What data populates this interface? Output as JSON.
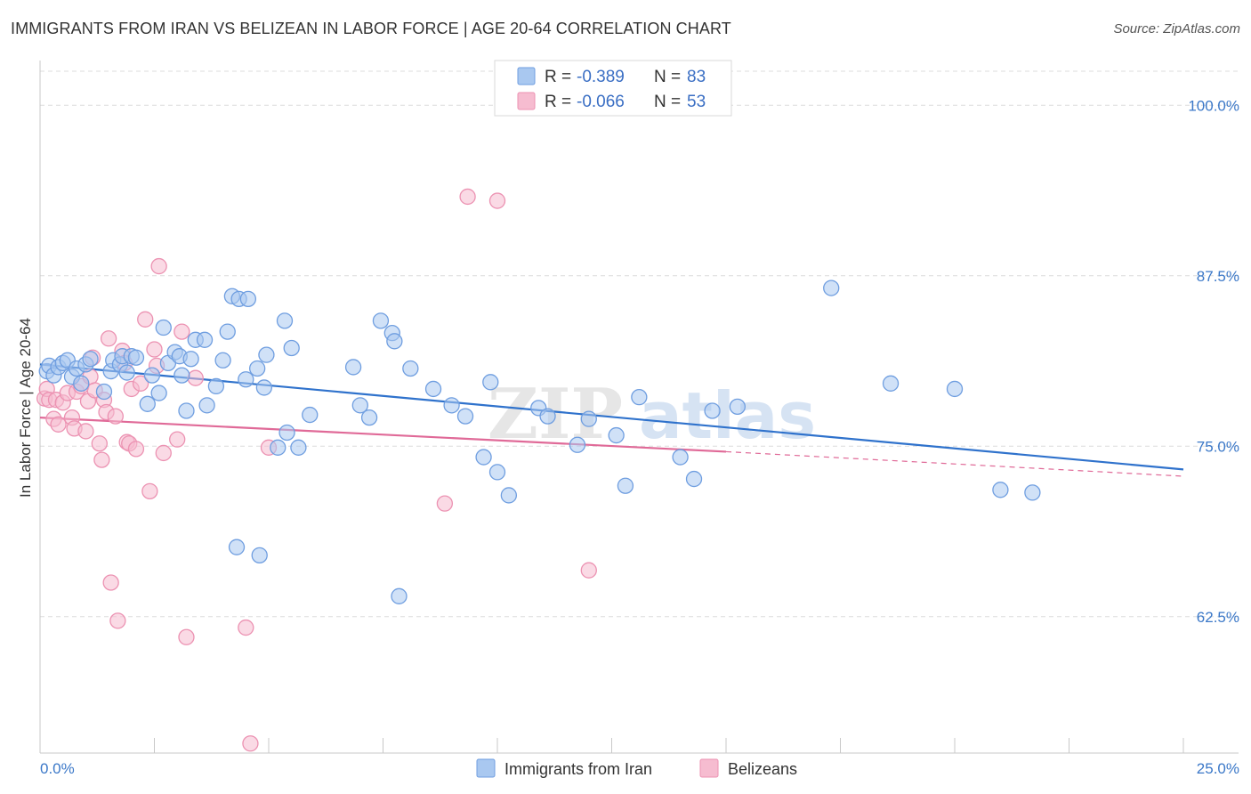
{
  "header": {
    "title": "IMMIGRANTS FROM IRAN VS BELIZEAN IN LABOR FORCE | AGE 20-64 CORRELATION CHART",
    "source": "Source: ZipAtlas.com"
  },
  "watermark": {
    "zip": "ZIP",
    "atlas": "atlas"
  },
  "colors": {
    "blue_fill": "#a9c8f0",
    "blue_stroke": "#6f9ee0",
    "blue_line": "#2f72cc",
    "pink_fill": "#f6bcd0",
    "pink_stroke": "#ec92b2",
    "pink_line": "#e06a98",
    "grid": "#dcdcdc",
    "tick_text": "#3b78c8"
  },
  "legend": {
    "series": [
      {
        "r_label": "R = ",
        "r_value": "-0.389",
        "n_label": "N = ",
        "n_value": "83"
      },
      {
        "r_label": "R = ",
        "r_value": "-0.066",
        "n_label": "N = ",
        "n_value": "53"
      }
    ]
  },
  "chart_data": {
    "type": "scatter",
    "title": "IMMIGRANTS FROM IRAN VS BELIZEAN IN LABOR FORCE | AGE 20-64 CORRELATION CHART",
    "xlabel": "",
    "ylabel": "In Labor Force | Age 20-64",
    "xlim": [
      0,
      25
    ],
    "ylim": [
      52.5,
      102.5
    ],
    "x_tick_labels": [
      "0.0%",
      "25.0%"
    ],
    "y_ticks": [
      62.5,
      75.0,
      87.5,
      100.0
    ],
    "y_tick_labels": [
      "62.5%",
      "75.0%",
      "87.5%",
      "100.0%"
    ],
    "grid": "horizontal dashed",
    "legend_position": "top-center",
    "series": [
      {
        "name": "Immigrants from Iran",
        "color": "#a9c8f0",
        "trend": {
          "x": [
            0,
            25
          ],
          "y": [
            81.0,
            73.3
          ]
        },
        "points": [
          [
            0.15,
            80.5
          ],
          [
            0.2,
            80.9
          ],
          [
            0.3,
            80.2
          ],
          [
            0.4,
            80.8
          ],
          [
            0.5,
            81.1
          ],
          [
            0.6,
            81.3
          ],
          [
            0.7,
            80.1
          ],
          [
            0.8,
            80.7
          ],
          [
            0.9,
            79.6
          ],
          [
            1.0,
            81.0
          ],
          [
            1.1,
            81.4
          ],
          [
            1.4,
            79.0
          ],
          [
            1.55,
            80.5
          ],
          [
            1.6,
            81.3
          ],
          [
            1.75,
            81.0
          ],
          [
            1.8,
            81.6
          ],
          [
            1.9,
            80.4
          ],
          [
            2.0,
            81.6
          ],
          [
            2.1,
            81.5
          ],
          [
            2.35,
            78.1
          ],
          [
            2.45,
            80.2
          ],
          [
            2.6,
            78.9
          ],
          [
            2.7,
            83.7
          ],
          [
            2.8,
            81.1
          ],
          [
            2.95,
            81.9
          ],
          [
            3.05,
            81.6
          ],
          [
            3.1,
            80.2
          ],
          [
            3.2,
            77.6
          ],
          [
            3.3,
            81.4
          ],
          [
            3.4,
            82.8
          ],
          [
            3.6,
            82.8
          ],
          [
            3.65,
            78.0
          ],
          [
            3.85,
            79.4
          ],
          [
            4.0,
            81.3
          ],
          [
            4.1,
            83.4
          ],
          [
            4.2,
            86.0
          ],
          [
            4.3,
            67.6
          ],
          [
            4.35,
            85.8
          ],
          [
            4.5,
            79.9
          ],
          [
            4.55,
            85.8
          ],
          [
            4.75,
            80.7
          ],
          [
            4.8,
            67.0
          ],
          [
            4.9,
            79.3
          ],
          [
            4.95,
            81.7
          ],
          [
            5.2,
            74.9
          ],
          [
            5.35,
            84.2
          ],
          [
            5.4,
            76.0
          ],
          [
            5.5,
            82.2
          ],
          [
            5.65,
            74.9
          ],
          [
            5.9,
            77.3
          ],
          [
            6.85,
            80.8
          ],
          [
            7.0,
            78.0
          ],
          [
            7.2,
            77.1
          ],
          [
            7.45,
            84.2
          ],
          [
            7.7,
            83.3
          ],
          [
            7.75,
            82.7
          ],
          [
            7.85,
            64.0
          ],
          [
            8.1,
            80.7
          ],
          [
            8.6,
            79.2
          ],
          [
            9.0,
            78.0
          ],
          [
            9.3,
            77.2
          ],
          [
            9.7,
            74.2
          ],
          [
            9.85,
            79.7
          ],
          [
            10.0,
            73.1
          ],
          [
            10.25,
            71.4
          ],
          [
            10.9,
            77.8
          ],
          [
            11.1,
            77.2
          ],
          [
            11.75,
            75.1
          ],
          [
            12.0,
            77.0
          ],
          [
            12.6,
            75.8
          ],
          [
            12.8,
            72.1
          ],
          [
            13.1,
            78.6
          ],
          [
            14.0,
            74.2
          ],
          [
            14.3,
            72.6
          ],
          [
            14.7,
            77.6
          ],
          [
            15.25,
            77.9
          ],
          [
            17.3,
            86.6
          ],
          [
            18.6,
            79.6
          ],
          [
            20.0,
            79.2
          ],
          [
            21.0,
            71.8
          ],
          [
            21.7,
            71.6
          ]
        ]
      },
      {
        "name": "Belizeans",
        "color": "#f6bcd0",
        "trend": {
          "x": [
            0,
            15.0
          ],
          "y": [
            77.1,
            74.6
          ]
        },
        "trend_ext": {
          "x": [
            15.0,
            25
          ],
          "y": [
            74.6,
            72.8
          ]
        },
        "points": [
          [
            0.1,
            78.5
          ],
          [
            0.15,
            79.2
          ],
          [
            0.2,
            78.4
          ],
          [
            0.3,
            77.0
          ],
          [
            0.35,
            78.4
          ],
          [
            0.4,
            76.6
          ],
          [
            0.5,
            78.2
          ],
          [
            0.6,
            78.9
          ],
          [
            0.7,
            77.1
          ],
          [
            0.75,
            76.3
          ],
          [
            0.8,
            79.0
          ],
          [
            0.9,
            79.4
          ],
          [
            1.0,
            76.1
          ],
          [
            1.05,
            78.3
          ],
          [
            1.1,
            80.1
          ],
          [
            1.15,
            81.5
          ],
          [
            1.2,
            79.1
          ],
          [
            1.3,
            75.2
          ],
          [
            1.35,
            74.0
          ],
          [
            1.4,
            78.4
          ],
          [
            1.45,
            77.5
          ],
          [
            1.5,
            82.9
          ],
          [
            1.55,
            65.0
          ],
          [
            1.65,
            77.2
          ],
          [
            1.7,
            62.2
          ],
          [
            1.8,
            82.0
          ],
          [
            1.85,
            81.1
          ],
          [
            1.9,
            75.3
          ],
          [
            1.95,
            75.2
          ],
          [
            2.0,
            79.2
          ],
          [
            2.1,
            74.8
          ],
          [
            2.2,
            79.6
          ],
          [
            2.3,
            84.3
          ],
          [
            2.4,
            71.7
          ],
          [
            2.5,
            82.1
          ],
          [
            2.55,
            80.9
          ],
          [
            2.6,
            88.2
          ],
          [
            2.7,
            74.5
          ],
          [
            3.0,
            75.5
          ],
          [
            3.1,
            83.4
          ],
          [
            3.2,
            61.0
          ],
          [
            3.4,
            80.0
          ],
          [
            4.5,
            61.7
          ],
          [
            4.6,
            53.2
          ],
          [
            5.0,
            74.9
          ],
          [
            8.85,
            70.8
          ],
          [
            9.35,
            93.3
          ],
          [
            10.0,
            93.0
          ],
          [
            12.0,
            65.9
          ]
        ]
      }
    ]
  },
  "bottom_legend": {
    "items": [
      {
        "label": "Immigrants from Iran"
      },
      {
        "label": "Belizeans"
      }
    ]
  }
}
